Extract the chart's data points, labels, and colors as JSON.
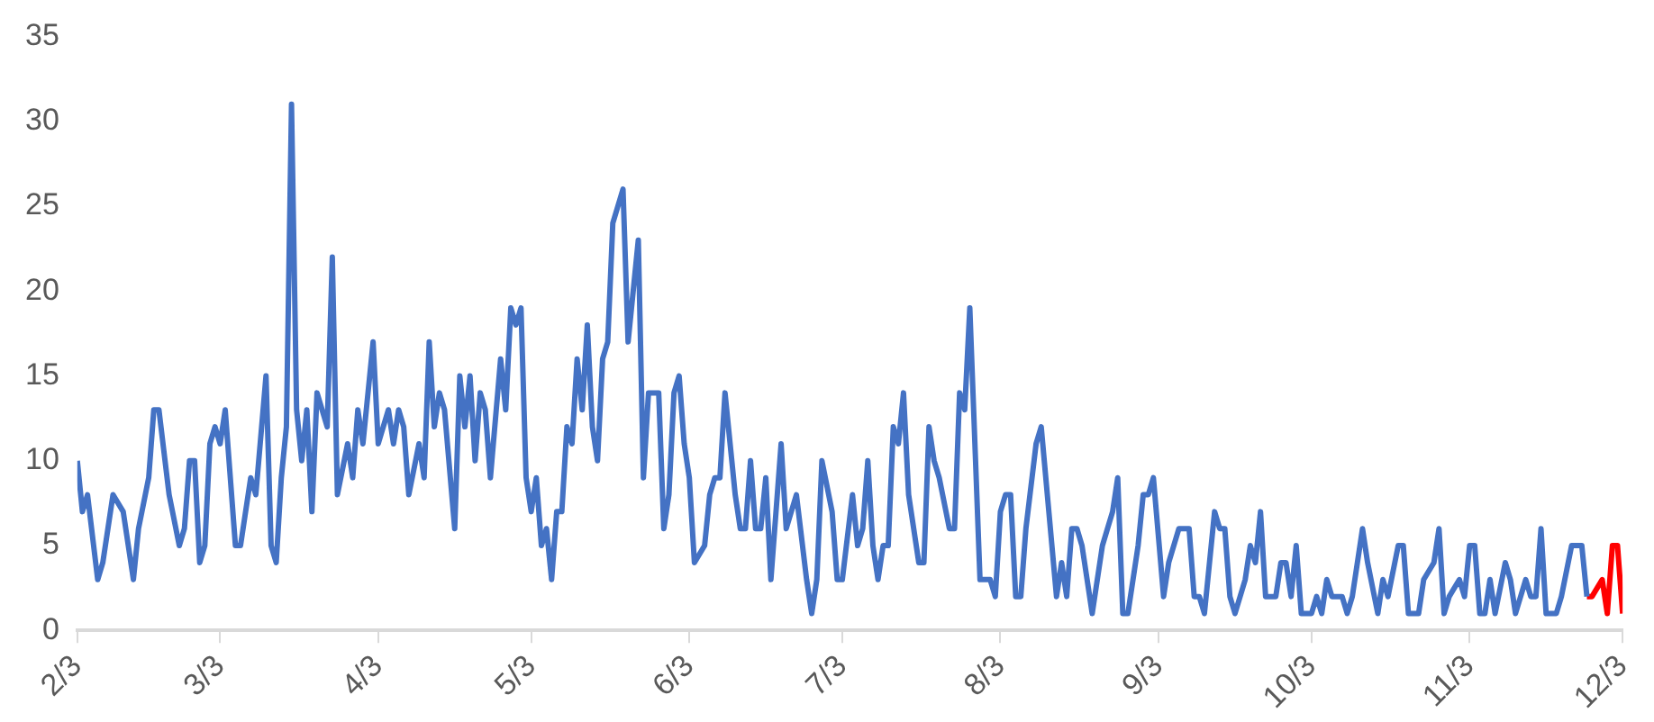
{
  "chart_data": {
    "type": "line",
    "xlim": [
      "--02-03",
      "--12-03"
    ],
    "ylim": [
      0,
      35
    ],
    "yticks": [
      0,
      5,
      10,
      15,
      20,
      25,
      30,
      35
    ],
    "xticks": [
      {
        "value": "--02-03",
        "label": "2/3"
      },
      {
        "value": "--03-03",
        "label": "3/3"
      },
      {
        "value": "--04-03",
        "label": "4/3"
      },
      {
        "value": "--05-03",
        "label": "5/3"
      },
      {
        "value": "--06-03",
        "label": "6/3"
      },
      {
        "value": "--07-03",
        "label": "7/3"
      },
      {
        "value": "--08-03",
        "label": "8/3"
      },
      {
        "value": "--09-03",
        "label": "9/3"
      },
      {
        "value": "--10-03",
        "label": "10/3"
      },
      {
        "value": "--11-03",
        "label": "11/3"
      },
      {
        "value": "--12-03",
        "label": "12/3"
      }
    ],
    "grid": false,
    "legend": false,
    "series": [
      {
        "color": "#4472c4",
        "x": [
          "--02-03",
          "--02-04",
          "--02-05",
          "--02-07",
          "--02-08",
          "--02-10",
          "--02-12",
          "--02-14",
          "--02-15",
          "--02-17",
          "--02-18",
          "--02-19",
          "--02-21",
          "--02-23",
          "--02-24",
          "--02-25",
          "--02-26",
          "--02-27",
          "--02-28",
          "--03-01",
          "--03-02",
          "--03-03",
          "--03-04",
          "--03-06",
          "--03-07",
          "--03-09",
          "--03-10",
          "--03-12",
          "--03-13",
          "--03-14",
          "--03-15",
          "--03-16",
          "--03-17",
          "--03-18",
          "--03-19",
          "--03-20",
          "--03-21",
          "--03-22",
          "--03-24",
          "--03-25",
          "--03-26",
          "--03-28",
          "--03-29",
          "--03-30",
          "--03-31",
          "--04-02",
          "--04-03",
          "--04-05",
          "--04-06",
          "--04-07",
          "--04-08",
          "--04-09",
          "--04-11",
          "--04-12",
          "--04-13",
          "--04-14",
          "--04-15",
          "--04-16",
          "--04-18",
          "--04-19",
          "--04-20",
          "--04-21",
          "--04-22",
          "--04-23",
          "--04-24",
          "--04-25",
          "--04-27",
          "--04-28",
          "--04-29",
          "--04-30",
          "--05-01",
          "--05-02",
          "--05-03",
          "--05-04",
          "--05-05",
          "--05-06",
          "--05-07",
          "--05-08",
          "--05-09",
          "--05-10",
          "--05-11",
          "--05-12",
          "--05-13",
          "--05-14",
          "--05-15",
          "--05-16",
          "--05-17",
          "--05-18",
          "--05-19",
          "--05-21",
          "--05-22",
          "--05-24",
          "--05-25",
          "--05-26",
          "--05-28",
          "--05-29",
          "--05-30",
          "--05-31",
          "--06-01",
          "--06-02",
          "--06-03",
          "--06-04",
          "--06-06",
          "--06-07",
          "--06-08",
          "--06-09",
          "--06-10",
          "--06-12",
          "--06-13",
          "--06-14",
          "--06-15",
          "--06-16",
          "--06-17",
          "--06-18",
          "--06-19",
          "--06-20",
          "--06-21",
          "--06-22",
          "--06-24",
          "--06-26",
          "--06-27",
          "--06-28",
          "--06-29",
          "--07-01",
          "--07-02",
          "--07-03",
          "--07-05",
          "--07-06",
          "--07-07",
          "--07-08",
          "--07-09",
          "--07-10",
          "--07-11",
          "--07-12",
          "--07-13",
          "--07-14",
          "--07-15",
          "--07-16",
          "--07-18",
          "--07-19",
          "--07-20",
          "--07-21",
          "--07-22",
          "--07-24",
          "--07-25",
          "--07-26",
          "--07-27",
          "--07-28",
          "--07-30",
          "--08-01",
          "--08-02",
          "--08-03",
          "--08-04",
          "--08-05",
          "--08-06",
          "--08-07",
          "--08-08",
          "--08-10",
          "--08-11",
          "--08-14",
          "--08-15",
          "--08-16",
          "--08-17",
          "--08-18",
          "--08-19",
          "--08-21",
          "--08-23",
          "--08-24",
          "--08-25",
          "--08-26",
          "--08-27",
          "--08-28",
          "--08-30",
          "--08-31",
          "--09-01",
          "--09-02",
          "--09-04",
          "--09-05",
          "--09-07",
          "--09-09",
          "--09-10",
          "--09-11",
          "--09-12",
          "--09-14",
          "--09-15",
          "--09-16",
          "--09-17",
          "--09-18",
          "--09-20",
          "--09-21",
          "--09-22",
          "--09-23",
          "--09-24",
          "--09-26",
          "--09-27",
          "--09-28",
          "--09-29",
          "--09-30",
          "--10-01",
          "--10-03",
          "--10-04",
          "--10-05",
          "--10-06",
          "--10-07",
          "--10-09",
          "--10-10",
          "--10-11",
          "--10-13",
          "--10-14",
          "--10-16",
          "--10-17",
          "--10-18",
          "--10-20",
          "--10-21",
          "--10-22",
          "--10-24",
          "--10-25",
          "--10-27",
          "--10-28",
          "--10-29",
          "--10-30",
          "--11-01",
          "--11-02",
          "--11-03",
          "--11-04",
          "--11-05",
          "--11-06",
          "--11-07",
          "--11-08",
          "--11-10",
          "--11-11",
          "--11-12",
          "--11-14",
          "--11-15",
          "--11-16",
          "--11-17",
          "--11-18",
          "--11-20",
          "--11-21",
          "--11-23",
          "--11-25",
          "--11-26"
        ],
        "values": [
          10,
          7,
          8,
          3,
          4,
          8,
          7,
          3,
          6,
          9,
          13,
          13,
          8,
          5,
          6,
          10,
          10,
          4,
          5,
          11,
          12,
          11,
          13,
          5,
          5,
          9,
          8,
          15,
          5,
          4,
          9,
          12,
          31,
          13,
          10,
          13,
          7,
          14,
          12,
          22,
          8,
          11,
          9,
          13,
          11,
          17,
          11,
          13,
          11,
          13,
          12,
          8,
          11,
          9,
          17,
          12,
          14,
          13,
          6,
          15,
          12,
          15,
          10,
          14,
          13,
          9,
          16,
          13,
          19,
          18,
          19,
          9,
          7,
          9,
          5,
          6,
          3,
          7,
          7,
          12,
          11,
          16,
          13,
          18,
          12,
          10,
          16,
          17,
          24,
          26,
          17,
          23,
          9,
          14,
          14,
          6,
          8,
          14,
          15,
          11,
          9,
          4,
          5,
          8,
          9,
          9,
          14,
          8,
          6,
          6,
          10,
          6,
          6,
          9,
          3,
          7,
          11,
          6,
          8,
          3,
          1,
          3,
          10,
          7,
          3,
          3,
          8,
          5,
          6,
          10,
          5,
          3,
          5,
          5,
          12,
          11,
          14,
          8,
          4,
          4,
          12,
          10,
          9,
          6,
          6,
          14,
          13,
          19,
          3,
          3,
          2,
          7,
          8,
          8,
          2,
          2,
          6,
          11,
          12,
          2,
          4,
          2,
          6,
          6,
          5,
          1,
          5,
          6,
          7,
          9,
          1,
          1,
          5,
          8,
          8,
          9,
          2,
          4,
          6,
          6,
          2,
          2,
          1,
          7,
          6,
          6,
          2,
          1,
          3,
          5,
          4,
          7,
          2,
          2,
          4,
          4,
          2,
          5,
          1,
          1,
          2,
          1,
          3,
          2,
          2,
          1,
          2,
          6,
          4,
          1,
          3,
          2,
          5,
          5,
          1,
          1,
          3,
          4,
          6,
          1,
          2,
          3,
          2,
          5,
          5,
          1,
          1,
          3,
          1,
          4,
          3,
          1,
          3,
          2,
          2,
          6,
          1,
          1,
          2,
          5,
          5,
          2
        ]
      },
      {
        "color": "#ff0000",
        "x": [
          "--11-26",
          "--11-27",
          "--11-29",
          "--11-30",
          "--12-01",
          "--12-02",
          "--12-03"
        ],
        "values": [
          2,
          2,
          3,
          1,
          5,
          5,
          1
        ]
      }
    ]
  }
}
